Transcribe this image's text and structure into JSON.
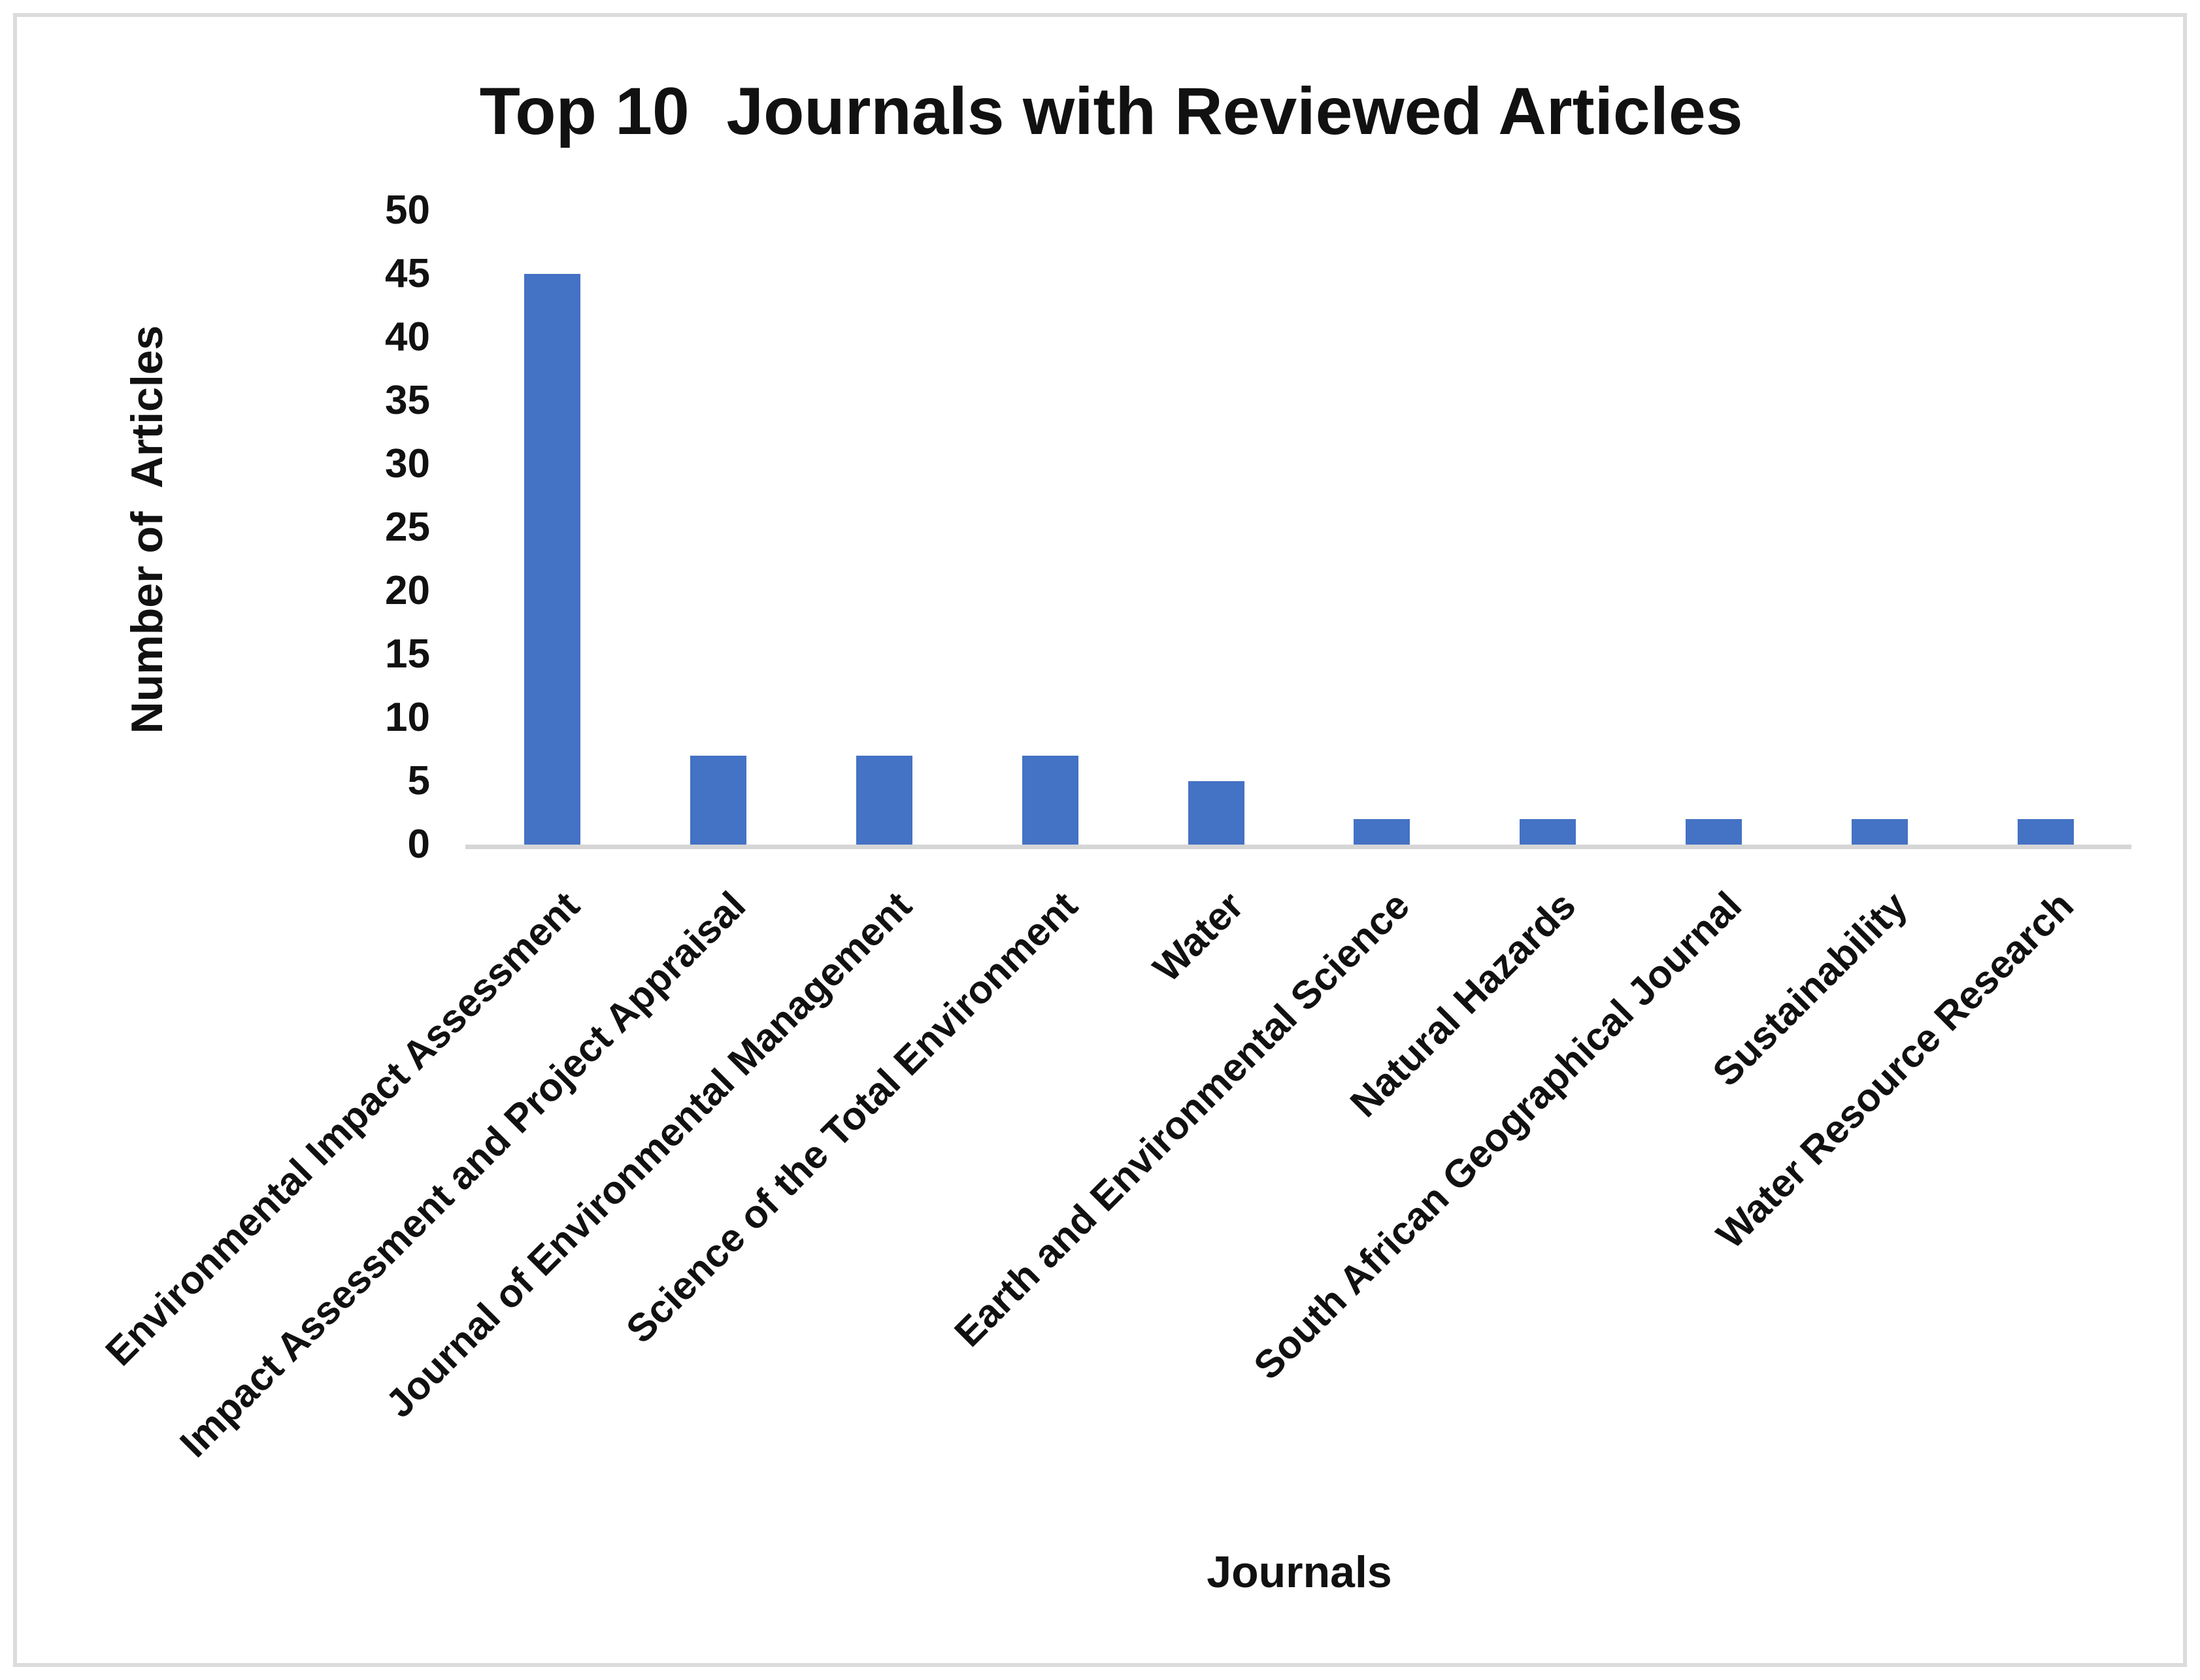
{
  "chart_data": {
    "type": "bar",
    "title": "Top 10  Journals with Reviewed Articles",
    "xlabel": "Journals",
    "ylabel": "Number of  Articles",
    "categories": [
      "Environmental Impact Assessment",
      "Impact Assessment and Project Appraisal",
      "Journal of Environmental Management",
      "Science of the Total Environment",
      "Water",
      "Earth and Environmental Science",
      "Natural Hazards",
      "South African Geographical Journal",
      "Sustainability",
      "Water Resource Research"
    ],
    "values": [
      45,
      7,
      7,
      7,
      5,
      2,
      2,
      2,
      2,
      2
    ],
    "ylim": [
      0,
      50
    ],
    "yticks": [
      0,
      5,
      10,
      15,
      20,
      25,
      30,
      35,
      40,
      45,
      50
    ],
    "x_tick_rotation_deg": 45,
    "grid": "off",
    "legend": "none",
    "bar_color": "#4472C4",
    "axis_line_color": "#d6d6d6",
    "figure_border_color": "#dcdcdc",
    "background_color": "#ffffff",
    "text_color": "#111111"
  }
}
